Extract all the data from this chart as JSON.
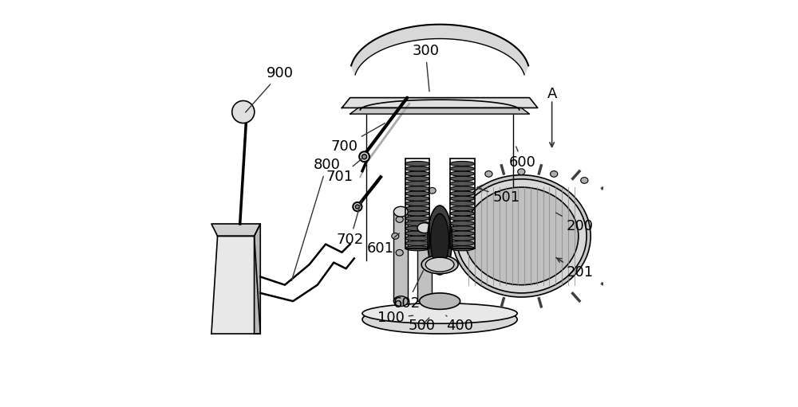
{
  "bg_color": "#ffffff",
  "line_color": "#000000",
  "gray_fill": "#d0d0d0",
  "dark_fill": "#404040",
  "mid_fill": "#888888",
  "light_fill": "#c8c8c8",
  "fig_width": 10.0,
  "fig_height": 5.11,
  "dpi": 100,
  "label_fontsize": 13,
  "leader_color": "#333333"
}
